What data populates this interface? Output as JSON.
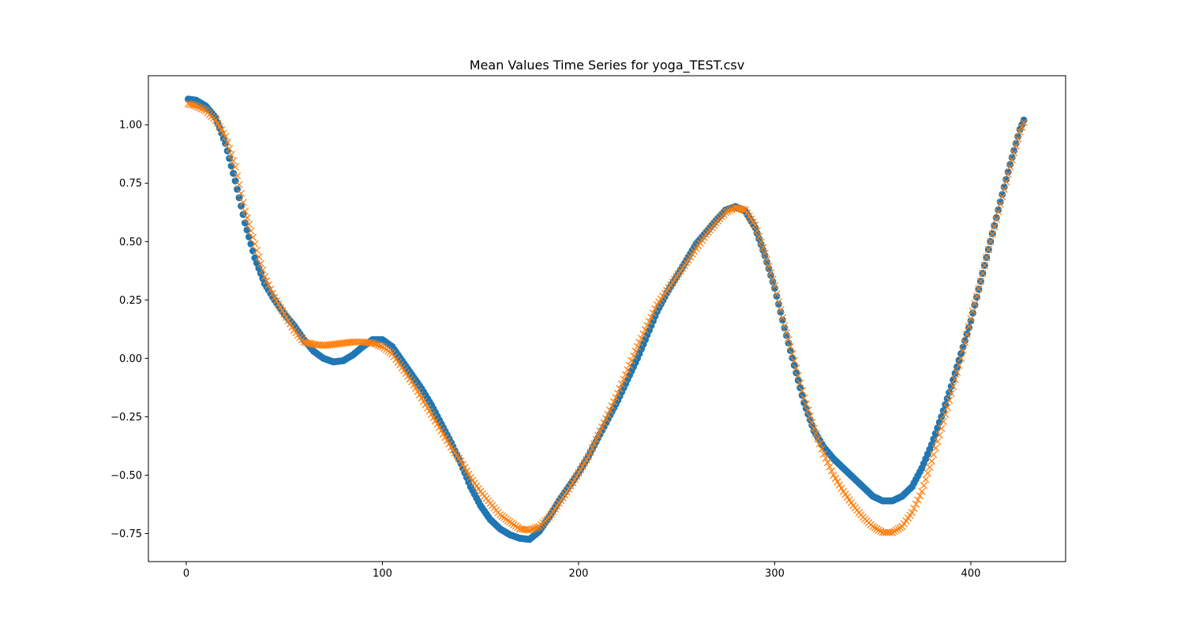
{
  "chart_data": {
    "type": "scatter",
    "title": "Mean Values Time Series for yoga_TEST.csv",
    "xlabel": "",
    "ylabel": "",
    "xlim": [
      -19.3,
      448.3
    ],
    "ylim": [
      -0.87,
      1.21
    ],
    "x_ticks": [
      0,
      100,
      200,
      300,
      400
    ],
    "y_ticks": [
      -0.75,
      -0.5,
      -0.25,
      0.0,
      0.25,
      0.5,
      0.75,
      1.0
    ],
    "y_tick_labels": [
      "−0.75",
      "−0.50",
      "−0.25",
      "0.00",
      "0.25",
      "0.50",
      "0.75",
      "1.00"
    ],
    "grid": false,
    "legend": "none",
    "series": [
      {
        "marker": "circle",
        "color": "#1f77b4",
        "key_points": [
          [
            1,
            1.11
          ],
          [
            5,
            1.105
          ],
          [
            10,
            1.08
          ],
          [
            15,
            1.03
          ],
          [
            20,
            0.92
          ],
          [
            25,
            0.76
          ],
          [
            30,
            0.58
          ],
          [
            35,
            0.43
          ],
          [
            40,
            0.32
          ],
          [
            45,
            0.25
          ],
          [
            50,
            0.19
          ],
          [
            55,
            0.14
          ],
          [
            60,
            0.08
          ],
          [
            65,
            0.03
          ],
          [
            70,
            0.0
          ],
          [
            75,
            -0.015
          ],
          [
            80,
            -0.01
          ],
          [
            85,
            0.015
          ],
          [
            90,
            0.05
          ],
          [
            95,
            0.08
          ],
          [
            100,
            0.08
          ],
          [
            105,
            0.05
          ],
          [
            110,
            -0.01
          ],
          [
            115,
            -0.07
          ],
          [
            120,
            -0.13
          ],
          [
            125,
            -0.2
          ],
          [
            130,
            -0.28
          ],
          [
            135,
            -0.36
          ],
          [
            140,
            -0.45
          ],
          [
            145,
            -0.55
          ],
          [
            150,
            -0.63
          ],
          [
            155,
            -0.69
          ],
          [
            160,
            -0.73
          ],
          [
            165,
            -0.755
          ],
          [
            170,
            -0.77
          ],
          [
            175,
            -0.775
          ],
          [
            180,
            -0.74
          ],
          [
            185,
            -0.68
          ],
          [
            190,
            -0.61
          ],
          [
            195,
            -0.55
          ],
          [
            200,
            -0.49
          ],
          [
            205,
            -0.42
          ],
          [
            210,
            -0.34
          ],
          [
            215,
            -0.26
          ],
          [
            220,
            -0.18
          ],
          [
            225,
            -0.09
          ],
          [
            230,
            0.0
          ],
          [
            235,
            0.1
          ],
          [
            240,
            0.2
          ],
          [
            245,
            0.28
          ],
          [
            250,
            0.35
          ],
          [
            255,
            0.42
          ],
          [
            260,
            0.49
          ],
          [
            265,
            0.54
          ],
          [
            270,
            0.59
          ],
          [
            275,
            0.635
          ],
          [
            280,
            0.65
          ],
          [
            285,
            0.63
          ],
          [
            290,
            0.56
          ],
          [
            295,
            0.44
          ],
          [
            300,
            0.3
          ],
          [
            305,
            0.13
          ],
          [
            310,
            -0.03
          ],
          [
            315,
            -0.19
          ],
          [
            320,
            -0.31
          ],
          [
            325,
            -0.38
          ],
          [
            330,
            -0.43
          ],
          [
            335,
            -0.47
          ],
          [
            340,
            -0.51
          ],
          [
            345,
            -0.55
          ],
          [
            350,
            -0.59
          ],
          [
            355,
            -0.61
          ],
          [
            360,
            -0.61
          ],
          [
            365,
            -0.59
          ],
          [
            370,
            -0.55
          ],
          [
            375,
            -0.47
          ],
          [
            380,
            -0.37
          ],
          [
            385,
            -0.25
          ],
          [
            390,
            -0.12
          ],
          [
            395,
            0.02
          ],
          [
            400,
            0.16
          ],
          [
            405,
            0.33
          ],
          [
            410,
            0.5
          ],
          [
            415,
            0.67
          ],
          [
            420,
            0.83
          ],
          [
            425,
            0.98
          ],
          [
            427,
            1.02
          ]
        ]
      },
      {
        "marker": "x",
        "color": "#ff7f0e",
        "key_points": [
          [
            1,
            1.09
          ],
          [
            5,
            1.08
          ],
          [
            10,
            1.06
          ],
          [
            15,
            1.02
          ],
          [
            20,
            0.95
          ],
          [
            25,
            0.82
          ],
          [
            30,
            0.63
          ],
          [
            35,
            0.49
          ],
          [
            40,
            0.35
          ],
          [
            45,
            0.26
          ],
          [
            50,
            0.19
          ],
          [
            55,
            0.12
          ],
          [
            60,
            0.07
          ],
          [
            65,
            0.06
          ],
          [
            70,
            0.055
          ],
          [
            75,
            0.06
          ],
          [
            80,
            0.065
          ],
          [
            85,
            0.07
          ],
          [
            90,
            0.07
          ],
          [
            95,
            0.065
          ],
          [
            100,
            0.05
          ],
          [
            105,
            0.02
          ],
          [
            110,
            -0.04
          ],
          [
            115,
            -0.1
          ],
          [
            120,
            -0.17
          ],
          [
            125,
            -0.24
          ],
          [
            130,
            -0.31
          ],
          [
            135,
            -0.38
          ],
          [
            140,
            -0.44
          ],
          [
            145,
            -0.51
          ],
          [
            150,
            -0.57
          ],
          [
            155,
            -0.62
          ],
          [
            160,
            -0.67
          ],
          [
            165,
            -0.7
          ],
          [
            170,
            -0.73
          ],
          [
            175,
            -0.735
          ],
          [
            180,
            -0.72
          ],
          [
            185,
            -0.68
          ],
          [
            190,
            -0.62
          ],
          [
            195,
            -0.56
          ],
          [
            200,
            -0.49
          ],
          [
            205,
            -0.42
          ],
          [
            210,
            -0.33
          ],
          [
            215,
            -0.24
          ],
          [
            220,
            -0.15
          ],
          [
            225,
            -0.05
          ],
          [
            230,
            0.05
          ],
          [
            235,
            0.14
          ],
          [
            240,
            0.23
          ],
          [
            245,
            0.29
          ],
          [
            250,
            0.35
          ],
          [
            255,
            0.41
          ],
          [
            260,
            0.47
          ],
          [
            265,
            0.53
          ],
          [
            270,
            0.58
          ],
          [
            275,
            0.625
          ],
          [
            280,
            0.645
          ],
          [
            285,
            0.635
          ],
          [
            290,
            0.57
          ],
          [
            295,
            0.45
          ],
          [
            300,
            0.31
          ],
          [
            305,
            0.14
          ],
          [
            310,
            -0.01
          ],
          [
            315,
            -0.17
          ],
          [
            320,
            -0.3
          ],
          [
            325,
            -0.41
          ],
          [
            330,
            -0.5
          ],
          [
            335,
            -0.57
          ],
          [
            340,
            -0.63
          ],
          [
            345,
            -0.68
          ],
          [
            350,
            -0.72
          ],
          [
            355,
            -0.745
          ],
          [
            360,
            -0.745
          ],
          [
            365,
            -0.72
          ],
          [
            370,
            -0.66
          ],
          [
            375,
            -0.57
          ],
          [
            380,
            -0.44
          ],
          [
            385,
            -0.3
          ],
          [
            390,
            -0.15
          ],
          [
            395,
            0.0
          ],
          [
            400,
            0.17
          ],
          [
            405,
            0.33
          ],
          [
            410,
            0.5
          ],
          [
            415,
            0.66
          ],
          [
            420,
            0.82
          ],
          [
            425,
            0.97
          ],
          [
            427,
            1.01
          ]
        ]
      }
    ]
  }
}
